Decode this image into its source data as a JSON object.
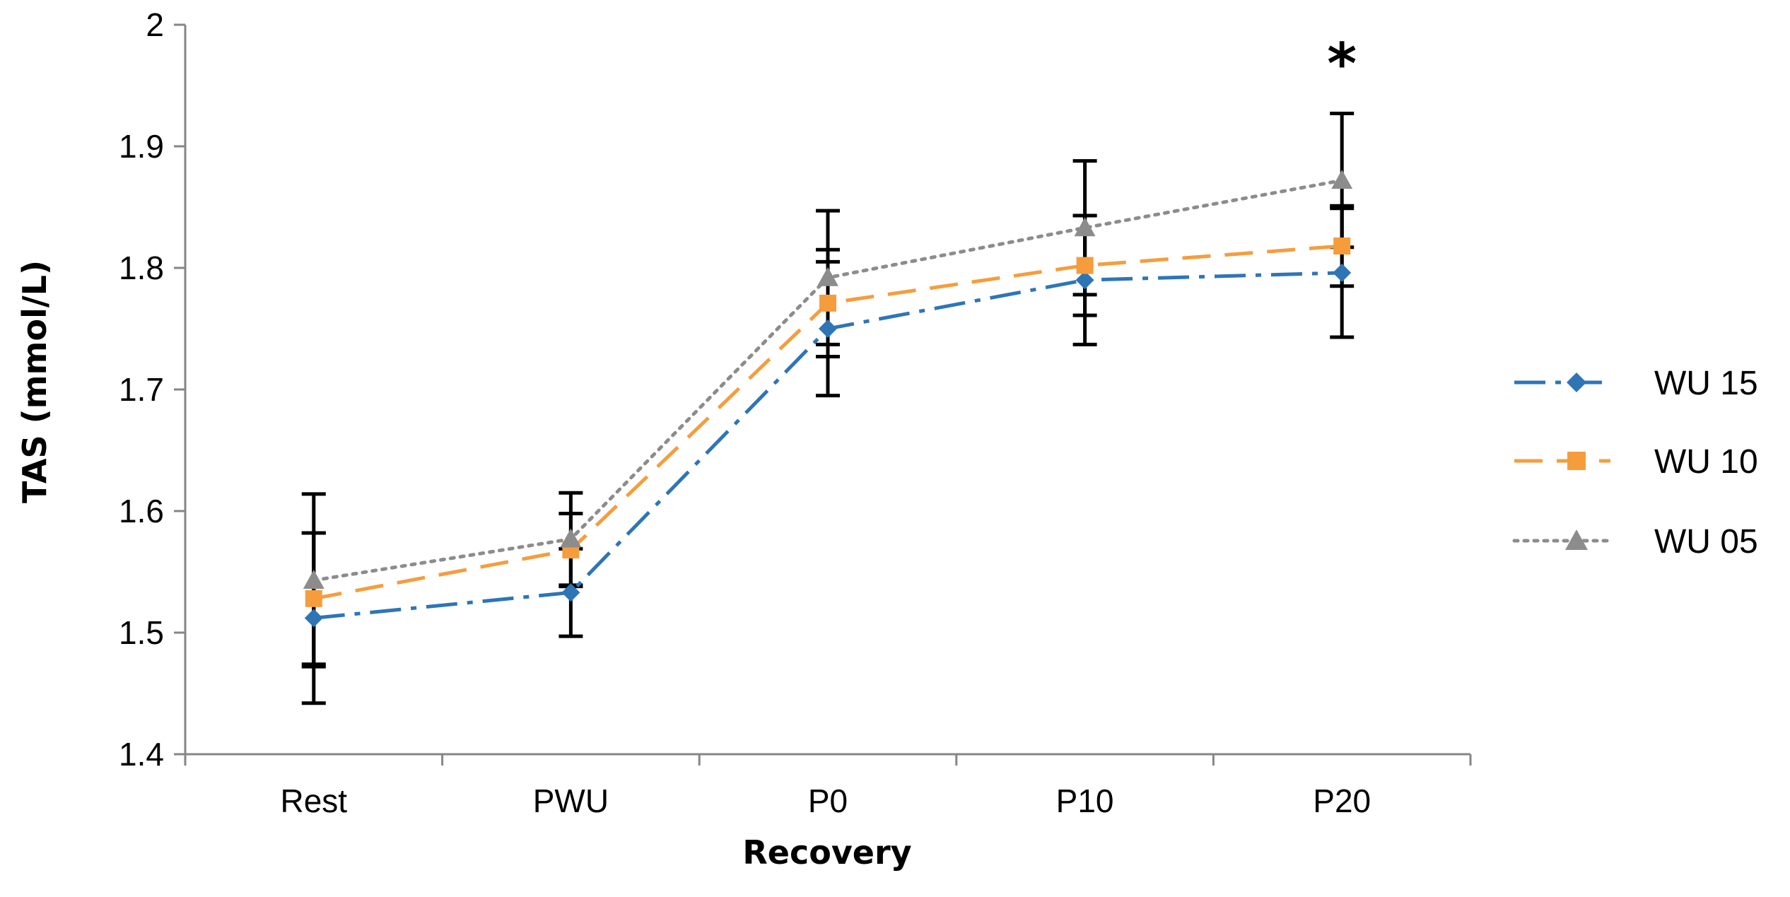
{
  "chart_data": {
    "type": "line",
    "title": "",
    "xlabel": "Recovery",
    "ylabel": "TAS (mmol/L)",
    "ylim": [
      1.4,
      2.0
    ],
    "yticks": [
      1.4,
      1.5,
      1.6,
      1.7,
      1.8,
      1.9,
      2.0
    ],
    "ytick_labels": [
      "1.4",
      "1.5",
      "1.6",
      "1.7",
      "1.8",
      "1.9",
      "2"
    ],
    "categories": [
      "Rest",
      "PWU",
      "P0",
      "P10",
      "P20"
    ],
    "grid": false,
    "legend_position": "right",
    "series": [
      {
        "name": "WU 15",
        "values": [
          1.512,
          1.533,
          1.75,
          1.79,
          1.796
        ],
        "errors": [
          0.07,
          0.036,
          0.055,
          0.053,
          0.053
        ],
        "color": "#2E75B6",
        "line_style": "dash-dot",
        "marker": "diamond"
      },
      {
        "name": "WU 10",
        "values": [
          1.528,
          1.568,
          1.771,
          1.802,
          1.818
        ],
        "errors": [
          0.054,
          0.03,
          0.044,
          0.041,
          0.033
        ],
        "color": "#F59D3D",
        "line_style": "dashed",
        "marker": "square"
      },
      {
        "name": "WU 05",
        "values": [
          1.543,
          1.577,
          1.792,
          1.833,
          1.872
        ],
        "errors": [
          0.071,
          0.038,
          0.055,
          0.055,
          0.055
        ],
        "color": "#8C8C8C",
        "line_style": "dotted",
        "marker": "triangle"
      }
    ],
    "annotations": [
      {
        "text": "*",
        "category": "P20"
      }
    ]
  }
}
